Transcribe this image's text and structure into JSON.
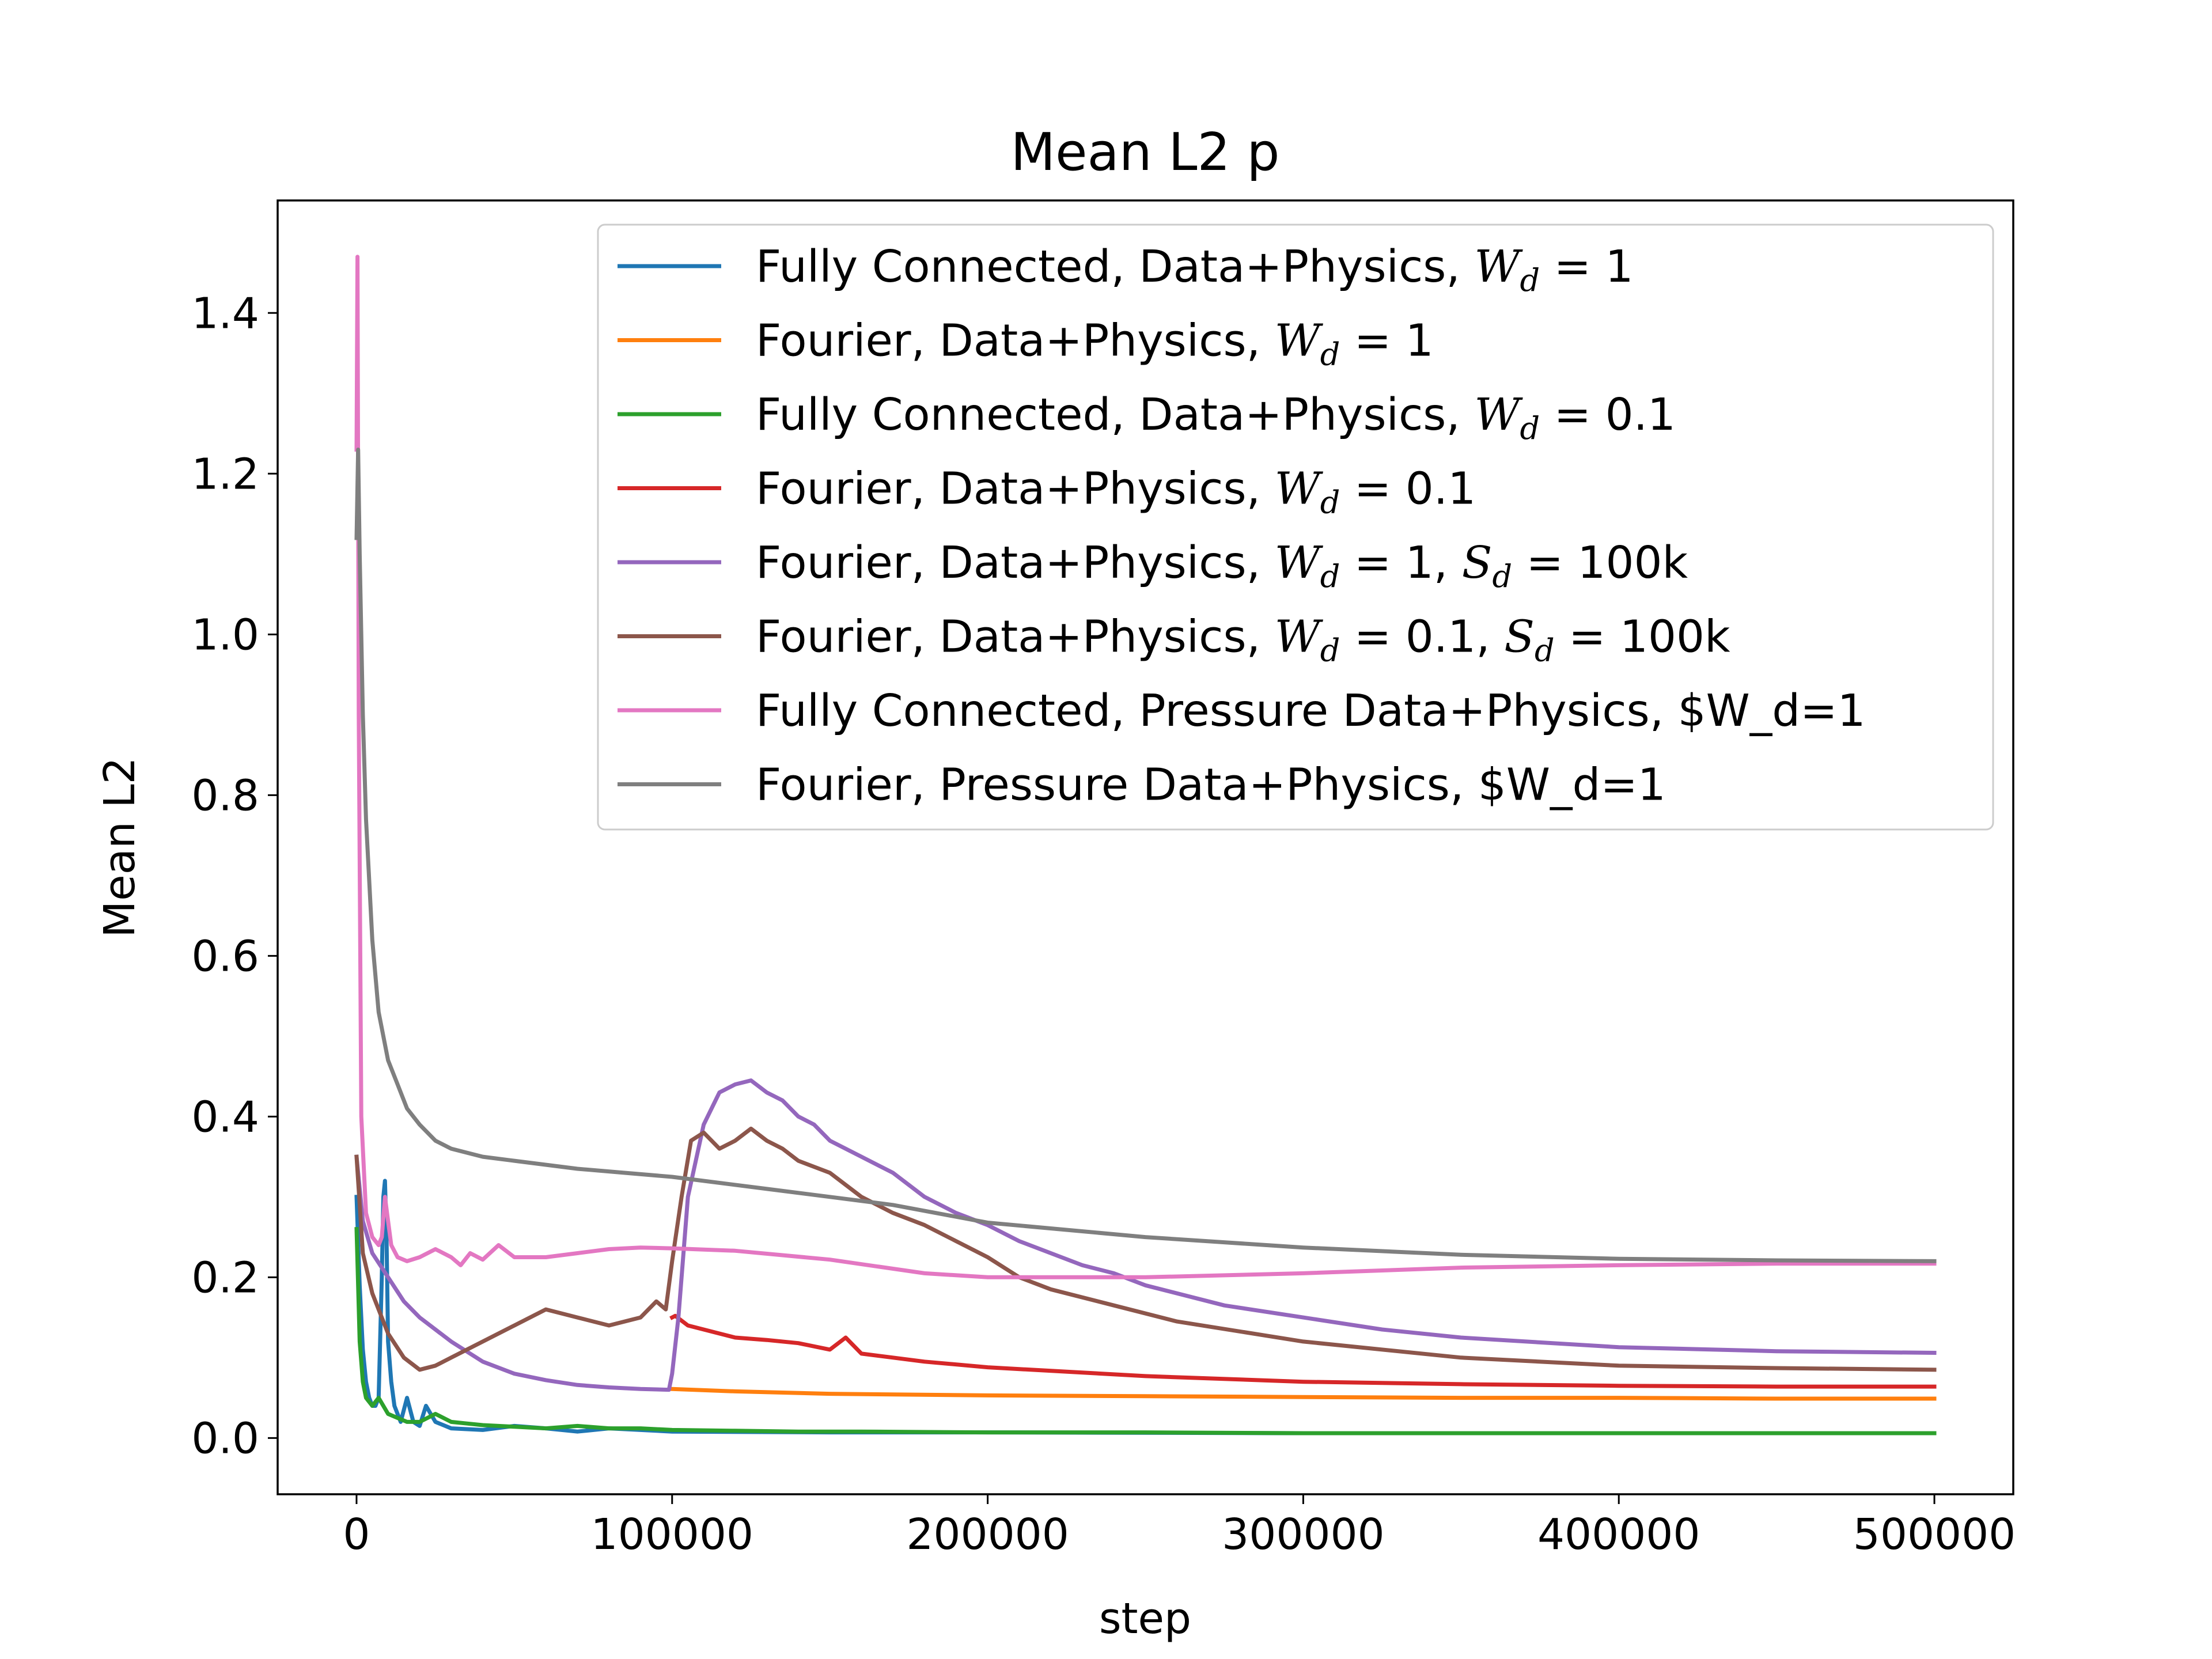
{
  "chart_data": {
    "type": "line",
    "title": "Mean L2 p",
    "xlabel": "step",
    "ylabel": "Mean L2",
    "xlim": [
      -25000,
      525000
    ],
    "ylim": [
      -0.07,
      1.54
    ],
    "xticks": [
      0,
      100000,
      200000,
      300000,
      400000,
      500000
    ],
    "xtick_labels": [
      "0",
      "100000",
      "200000",
      "300000",
      "400000",
      "500000"
    ],
    "yticks": [
      0.0,
      0.2,
      0.4,
      0.6,
      0.8,
      1.0,
      1.2,
      1.4
    ],
    "ytick_labels": [
      "0.0",
      "0.2",
      "0.4",
      "0.6",
      "0.8",
      "1.0",
      "1.2",
      "1.4"
    ],
    "grid": false,
    "legend_position": "top-right",
    "series": [
      {
        "name": "Fully Connected, Data+Physics, W_d = 1",
        "label_parts": [
          [
            "Fully Connected, Data+Physics, ",
            "t"
          ],
          [
            "W",
            "m"
          ],
          [
            "d",
            "sub"
          ],
          [
            " = 1",
            "t"
          ]
        ],
        "color": "#1f77b4",
        "x": [
          0,
          1000,
          2000,
          3000,
          4000,
          5000,
          6000,
          7000,
          8000,
          8500,
          9000,
          9500,
          10000,
          11000,
          12000,
          14000,
          16000,
          18000,
          20000,
          22000,
          25000,
          30000,
          40000,
          50000,
          60000,
          70000,
          80000,
          100000,
          150000,
          200000,
          300000,
          400000,
          500000
        ],
        "y": [
          0.3,
          0.19,
          0.11,
          0.07,
          0.05,
          0.04,
          0.04,
          0.05,
          0.2,
          0.3,
          0.32,
          0.25,
          0.12,
          0.07,
          0.04,
          0.02,
          0.05,
          0.02,
          0.015,
          0.04,
          0.02,
          0.012,
          0.01,
          0.015,
          0.012,
          0.008,
          0.012,
          0.008,
          0.007,
          0.007,
          0.006,
          0.006,
          0.006
        ]
      },
      {
        "name": "Fourier, Data+Physics, W_d = 1",
        "label_parts": [
          [
            "Fourier, Data+Physics, ",
            "t"
          ],
          [
            "W",
            "m"
          ],
          [
            "d",
            "sub"
          ],
          [
            " = 1",
            "t"
          ]
        ],
        "color": "#ff7f0e",
        "x": [
          100000,
          120000,
          150000,
          200000,
          250000,
          300000,
          350000,
          400000,
          450000,
          500000
        ],
        "y": [
          0.061,
          0.058,
          0.055,
          0.053,
          0.052,
          0.051,
          0.05,
          0.05,
          0.049,
          0.049
        ]
      },
      {
        "name": "Fully Connected, Data+Physics, W_d = 0.1",
        "label_parts": [
          [
            "Fully Connected, Data+Physics, ",
            "t"
          ],
          [
            "W",
            "m"
          ],
          [
            "d",
            "sub"
          ],
          [
            " = 0.1",
            "t"
          ]
        ],
        "color": "#2ca02c",
        "x": [
          0,
          1000,
          2000,
          3000,
          5000,
          7000,
          10000,
          13000,
          16000,
          20000,
          25000,
          30000,
          35000,
          40000,
          50000,
          60000,
          70000,
          80000,
          90000,
          100000,
          120000,
          140000,
          160000,
          200000,
          250000,
          300000,
          400000,
          500000
        ],
        "y": [
          0.26,
          0.12,
          0.07,
          0.05,
          0.04,
          0.05,
          0.03,
          0.025,
          0.02,
          0.02,
          0.03,
          0.02,
          0.018,
          0.016,
          0.014,
          0.012,
          0.015,
          0.012,
          0.012,
          0.01,
          0.009,
          0.008,
          0.008,
          0.007,
          0.007,
          0.006,
          0.006,
          0.006
        ]
      },
      {
        "name": "Fourier, Data+Physics, W_d = 0.1",
        "label_parts": [
          [
            "Fourier, Data+Physics, ",
            "t"
          ],
          [
            "W",
            "m"
          ],
          [
            "d",
            "sub"
          ],
          [
            " = 0.1",
            "t"
          ]
        ],
        "color": "#d62728",
        "x": [
          100000,
          101000,
          105000,
          110000,
          115000,
          120000,
          130000,
          140000,
          150000,
          155000,
          160000,
          170000,
          180000,
          200000,
          250000,
          300000,
          350000,
          400000,
          450000,
          500000
        ],
        "y": [
          0.15,
          0.152,
          0.14,
          0.135,
          0.13,
          0.125,
          0.122,
          0.118,
          0.11,
          0.125,
          0.105,
          0.1,
          0.095,
          0.088,
          0.077,
          0.07,
          0.067,
          0.065,
          0.064,
          0.064
        ]
      },
      {
        "name": "Fourier, Data+Physics, W_d = 1, S_d = 100k",
        "label_parts": [
          [
            "Fourier, Data+Physics, ",
            "t"
          ],
          [
            "W",
            "m"
          ],
          [
            "d",
            "sub"
          ],
          [
            " = 1, ",
            "t"
          ],
          [
            "S",
            "m"
          ],
          [
            "d",
            "sub"
          ],
          [
            " = 100k",
            "t"
          ]
        ],
        "color": "#9467bd",
        "x": [
          0,
          2000,
          5000,
          10000,
          15000,
          20000,
          30000,
          40000,
          50000,
          60000,
          70000,
          80000,
          90000,
          99000,
          100000,
          102000,
          105000,
          110000,
          115000,
          120000,
          125000,
          130000,
          135000,
          140000,
          145000,
          150000,
          160000,
          170000,
          180000,
          190000,
          200000,
          210000,
          220000,
          230000,
          240000,
          250000,
          275000,
          300000,
          325000,
          350000,
          400000,
          450000,
          500000
        ],
        "y": [
          0.35,
          0.27,
          0.23,
          0.2,
          0.17,
          0.15,
          0.12,
          0.095,
          0.08,
          0.072,
          0.066,
          0.063,
          0.061,
          0.06,
          0.08,
          0.15,
          0.3,
          0.39,
          0.43,
          0.44,
          0.445,
          0.43,
          0.42,
          0.4,
          0.39,
          0.37,
          0.35,
          0.33,
          0.3,
          0.28,
          0.265,
          0.245,
          0.23,
          0.215,
          0.205,
          0.19,
          0.165,
          0.15,
          0.135,
          0.125,
          0.113,
          0.108,
          0.106
        ]
      },
      {
        "name": "Fourier, Data+Physics, W_d = 0.1, S_d = 100k",
        "label_parts": [
          [
            "Fourier, Data+Physics, ",
            "t"
          ],
          [
            "W",
            "m"
          ],
          [
            "d",
            "sub"
          ],
          [
            " = 0.1, ",
            "t"
          ],
          [
            "S",
            "m"
          ],
          [
            "d",
            "sub"
          ],
          [
            " = 100k",
            "t"
          ]
        ],
        "color": "#8c564b",
        "x": [
          0,
          2000,
          5000,
          10000,
          15000,
          20000,
          25000,
          30000,
          40000,
          50000,
          60000,
          70000,
          80000,
          90000,
          95000,
          98000,
          100000,
          103000,
          106000,
          110000,
          115000,
          120000,
          125000,
          130000,
          135000,
          140000,
          150000,
          160000,
          170000,
          180000,
          190000,
          200000,
          210000,
          220000,
          240000,
          260000,
          300000,
          350000,
          400000,
          450000,
          500000
        ],
        "y": [
          0.35,
          0.23,
          0.18,
          0.13,
          0.1,
          0.085,
          0.09,
          0.1,
          0.12,
          0.14,
          0.16,
          0.15,
          0.14,
          0.15,
          0.17,
          0.16,
          0.22,
          0.3,
          0.37,
          0.38,
          0.36,
          0.37,
          0.385,
          0.37,
          0.36,
          0.345,
          0.33,
          0.3,
          0.28,
          0.265,
          0.245,
          0.225,
          0.2,
          0.185,
          0.165,
          0.145,
          0.12,
          0.1,
          0.09,
          0.087,
          0.085
        ]
      },
      {
        "name": "Fully Connected, Pressure Data+Physics, $W_d=1",
        "label_parts": [
          [
            "Fully Connected, Pressure Data+Physics, $W_d=1",
            "t"
          ]
        ],
        "color": "#e377c2",
        "x": [
          0,
          300,
          700,
          1500,
          3000,
          5000,
          7000,
          8000,
          9000,
          10000,
          11000,
          13000,
          16000,
          20000,
          25000,
          30000,
          33000,
          36000,
          40000,
          45000,
          50000,
          60000,
          70000,
          80000,
          90000,
          100000,
          120000,
          150000,
          180000,
          200000,
          250000,
          300000,
          350000,
          400000,
          450000,
          500000
        ],
        "y": [
          1.23,
          1.47,
          0.9,
          0.4,
          0.28,
          0.25,
          0.24,
          0.25,
          0.3,
          0.27,
          0.24,
          0.225,
          0.22,
          0.225,
          0.235,
          0.225,
          0.215,
          0.23,
          0.222,
          0.24,
          0.225,
          0.225,
          0.23,
          0.235,
          0.237,
          0.236,
          0.233,
          0.222,
          0.205,
          0.2,
          0.2,
          0.205,
          0.212,
          0.215,
          0.217,
          0.217
        ]
      },
      {
        "name": "Fourier, Pressure Data+Physics, $W_d=1",
        "label_parts": [
          [
            "Fourier, Pressure Data+Physics, $W_d=1",
            "t"
          ]
        ],
        "color": "#7f7f7f",
        "x": [
          0,
          500,
          1000,
          2000,
          3000,
          5000,
          7000,
          10000,
          13000,
          16000,
          20000,
          25000,
          30000,
          40000,
          50000,
          70000,
          100000,
          130000,
          150000,
          170000,
          200000,
          250000,
          300000,
          350000,
          400000,
          450000,
          500000
        ],
        "y": [
          1.12,
          1.23,
          1.1,
          0.9,
          0.77,
          0.62,
          0.53,
          0.47,
          0.44,
          0.41,
          0.39,
          0.37,
          0.36,
          0.35,
          0.345,
          0.335,
          0.325,
          0.31,
          0.3,
          0.29,
          0.268,
          0.25,
          0.237,
          0.228,
          0.223,
          0.221,
          0.22
        ]
      }
    ]
  }
}
